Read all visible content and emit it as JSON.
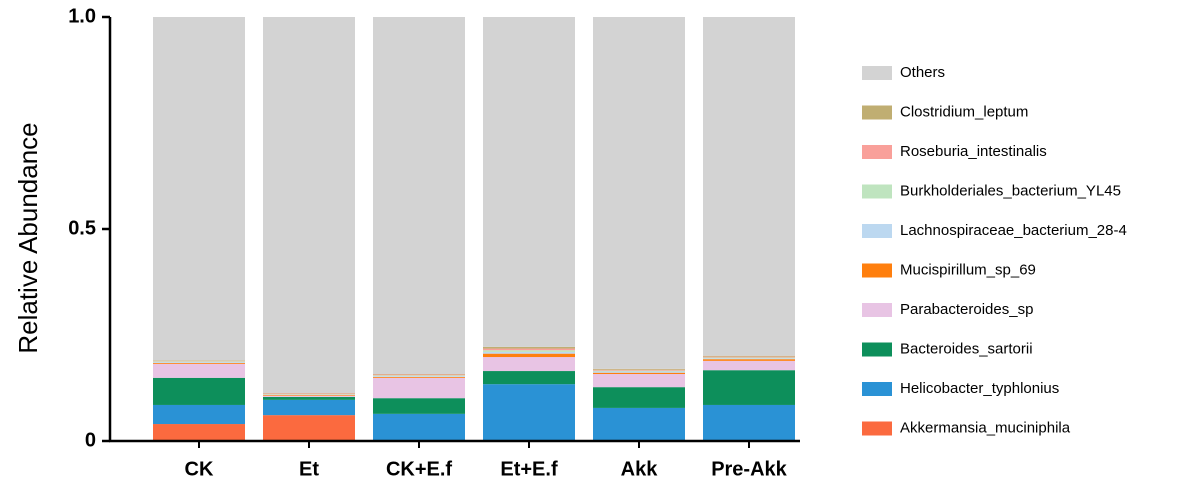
{
  "chart_data": {
    "type": "stacked_bar",
    "y_label": "Relative Abundance",
    "categories": [
      "CK",
      "Et",
      "CK+E.f",
      "Et+E.f",
      "Akk",
      "Pre-Akk"
    ],
    "ylim": [
      0,
      1
    ],
    "yticks": [
      0,
      0.5,
      {
        "value": 1,
        "label": "1.0"
      }
    ],
    "series": [
      {
        "name": "Akkermansia_muciniphila",
        "color": "#fb6a3f",
        "values": [
          0.04,
          0.061,
          0,
          0,
          0,
          0
        ]
      },
      {
        "name": "Helicobacter_typhlonius",
        "color": "#2a92d5",
        "values": [
          0.045,
          0.036,
          0.064,
          0.134,
          0.078,
          0.085
        ]
      },
      {
        "name": "Bacteroides_sartorii",
        "color": "#0d8f5b",
        "values": [
          0.064,
          0.007,
          0.037,
          0.031,
          0.049,
          0.082
        ]
      },
      {
        "name": "Parabacteroides_sp",
        "color": "#e8c4e4",
        "values": [
          0.033,
          0.003,
          0.048,
          0.033,
          0.031,
          0.022
        ]
      },
      {
        "name": "Mucispirillum_sp_69",
        "color": "#ff7f0e",
        "values": [
          0.002,
          0.002,
          0.002,
          0.008,
          0.003,
          0.004
        ]
      },
      {
        "name": "Lachnospiraceae_bacterium_28-4",
        "color": "#bcd8f0",
        "values": [
          0.002,
          0.001,
          0.002,
          0.004,
          0.003,
          0.002
        ]
      },
      {
        "name": "Burkholderiales_bacterium_YL45",
        "color": "#bfe4bf",
        "values": [
          0.002,
          0.001,
          0.002,
          0.004,
          0.002,
          0.002
        ]
      },
      {
        "name": "Roseburia_intestinalis",
        "color": "#f9a09a",
        "values": [
          0.001,
          0.001,
          0.002,
          0.004,
          0.002,
          0.002
        ]
      },
      {
        "name": "Clostridium_leptum",
        "color": "#c0ae72",
        "values": [
          0.001,
          0.001,
          0.001,
          0.004,
          0.002,
          0.002
        ]
      },
      {
        "name": "Others",
        "color": "#d3d3d3",
        "values": [
          0.81,
          0.887,
          0.842,
          0.778,
          0.83,
          0.799
        ]
      }
    ]
  }
}
